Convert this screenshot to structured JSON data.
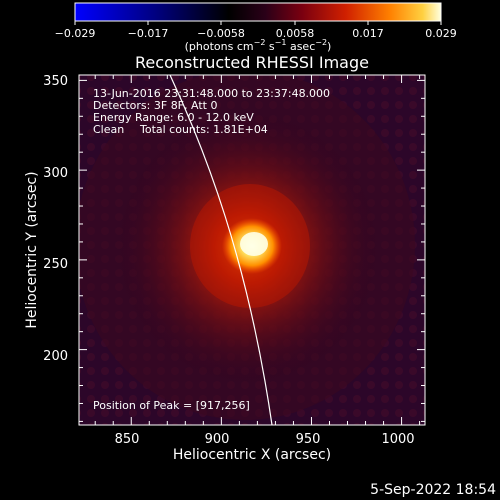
{
  "colorbar": {
    "ticks": [
      "−0.029",
      "−0.017",
      "−0.0058",
      "0.0058",
      "0.017",
      "0.029"
    ],
    "units_main": "(photons cm",
    "units_exp1": "−2",
    "units_s": " s",
    "units_exp2": "−1",
    "units_asec": " asec",
    "units_exp3": "−2",
    "units_close": ")"
  },
  "title": "Reconstructed RHESSI Image",
  "info": {
    "time_range": "13-Jun-2016 23:31:48.000 to 23:37:48.000",
    "detectors": "Detectors: 3F 8F, Att 0",
    "energy": "Energy Range: 6.0 - 12.0 keV",
    "clean_label": "Clean",
    "total_counts": "Total counts: 1.81E+04"
  },
  "peak": "Position of Peak = [917,256]",
  "x_axis": {
    "label": "Heliocentric X (arcsec)",
    "ticks": [
      "850",
      "900",
      "950",
      "1000"
    ],
    "tick_values": [
      850,
      900,
      950,
      1000
    ],
    "range": [
      821,
      1013
    ]
  },
  "y_axis": {
    "label": "Heliocentric Y (arcsec)",
    "ticks": [
      "350",
      "300",
      "250",
      "200"
    ],
    "tick_values": [
      350,
      300,
      250,
      200
    ],
    "range": [
      158,
      353
    ]
  },
  "date_stamp": "5-Sep-2022 18:54",
  "colors": {
    "colormap": [
      "#0000ff",
      "#000040",
      "#000000",
      "#2a001a",
      "#5a0010",
      "#a01000",
      "#e04000",
      "#ff9000",
      "#ffd040",
      "#ffffe0"
    ]
  }
}
